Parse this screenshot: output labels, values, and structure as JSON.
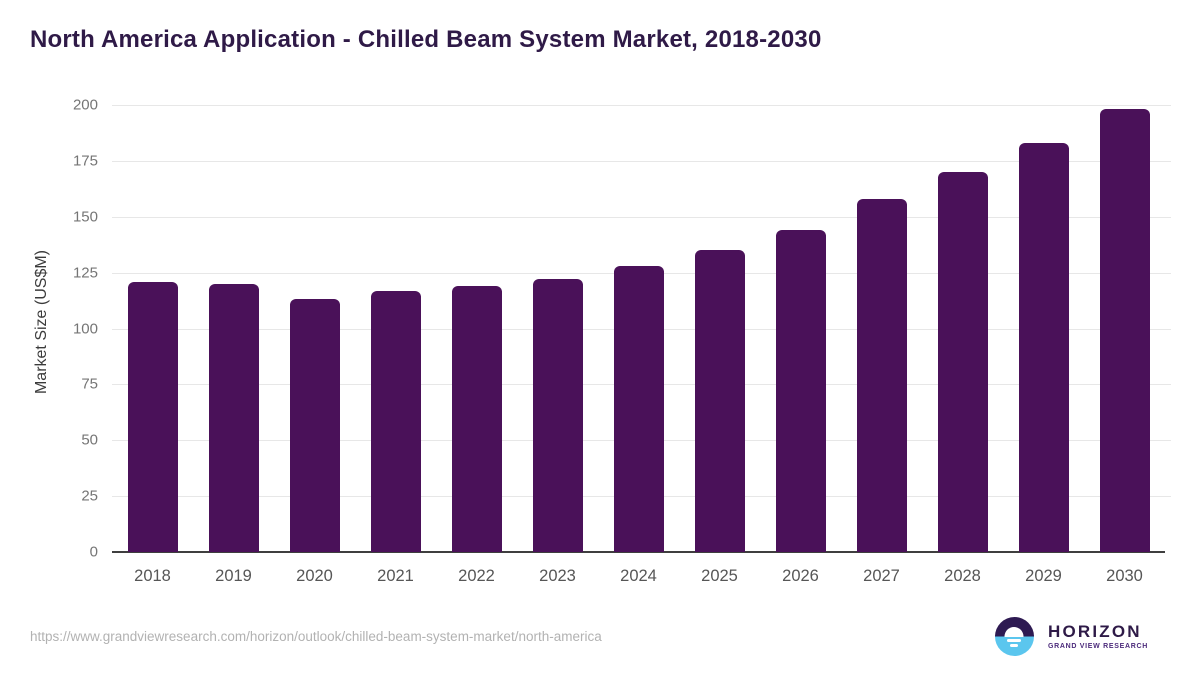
{
  "page": {
    "title": "North America Application - Chilled Beam System Market, 2018-2030"
  },
  "footer": {
    "source_url": "https://www.grandviewresearch.com/horizon/outlook/chilled-beam-system-market/north-america",
    "logo": {
      "title": "HORIZON",
      "subtitle": "GRAND VIEW RESEARCH",
      "icon": "sun-over-horizon-icon",
      "colors": {
        "top": "#2e1a52",
        "bottom": "#5bc6ee",
        "text": "#2e1a47"
      }
    }
  },
  "colors": {
    "bar": "#4a1159",
    "title_text": "#2f1a47",
    "gridline": "#e7e7e7",
    "axis_line": "#3f3f3f",
    "y_tick_text": "#757575",
    "x_tick_text": "#565656",
    "url_text": "#b2b2b2"
  },
  "chart_data": {
    "type": "bar",
    "title": "North America Application - Chilled Beam System Market, 2018-2030",
    "categories": [
      "2018",
      "2019",
      "2020",
      "2021",
      "2022",
      "2023",
      "2024",
      "2025",
      "2026",
      "2027",
      "2028",
      "2029",
      "2030"
    ],
    "values": [
      121,
      120,
      113,
      117,
      119,
      122,
      128,
      135,
      144,
      158,
      170,
      183,
      198
    ],
    "xlabel": "",
    "ylabel": "Market Size (US$M)",
    "ylim": [
      0,
      200
    ],
    "yticks": [
      0,
      25,
      50,
      75,
      100,
      125,
      150,
      175,
      200
    ],
    "grid": true,
    "legend": false,
    "bar_color": "#4a1159"
  }
}
